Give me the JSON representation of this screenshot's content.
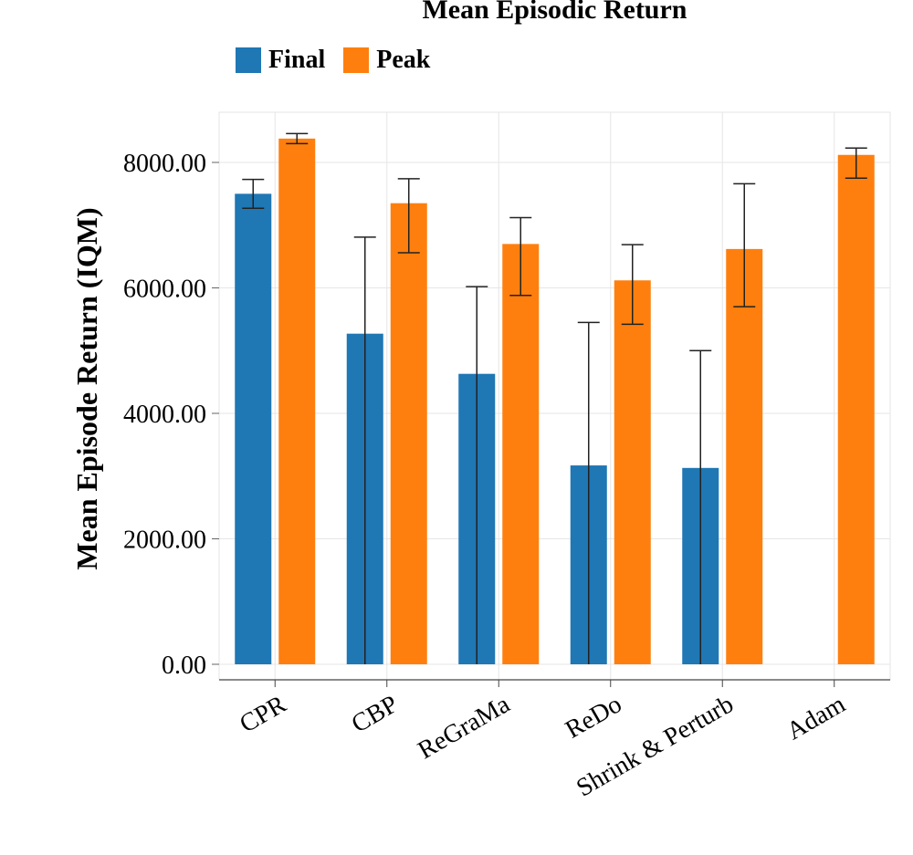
{
  "chart_data": {
    "type": "bar",
    "title": "Mean Episodic Return",
    "ylabel": "Mean Episode Return (IQM)",
    "xlabel": "",
    "categories": [
      "CPR",
      "CBP",
      "ReGraMa",
      "ReDo",
      "Shrink & Perturb",
      "Adam"
    ],
    "ylim": [
      0,
      8800
    ],
    "yticks": [
      0,
      2000,
      4000,
      6000,
      8000
    ],
    "ytick_labels": [
      "0.00",
      "2000.00",
      "4000.00",
      "6000.00",
      "8000.00"
    ],
    "grid": true,
    "legend_position": "top-left",
    "series": [
      {
        "name": "Final",
        "color": "#1f77b4",
        "values": [
          7500,
          5270,
          4630,
          3170,
          3130,
          null
        ],
        "err_low": [
          7270,
          0,
          0,
          0,
          0,
          null
        ],
        "err_high": [
          7730,
          6810,
          6020,
          5450,
          5000,
          null
        ]
      },
      {
        "name": "Peak",
        "color": "#ff7f0e",
        "values": [
          8380,
          7350,
          6700,
          6120,
          6620,
          8120
        ],
        "err_low": [
          8300,
          6560,
          5880,
          5420,
          5700,
          7750
        ],
        "err_high": [
          8460,
          7740,
          7120,
          6690,
          7660,
          8230
        ]
      }
    ]
  }
}
